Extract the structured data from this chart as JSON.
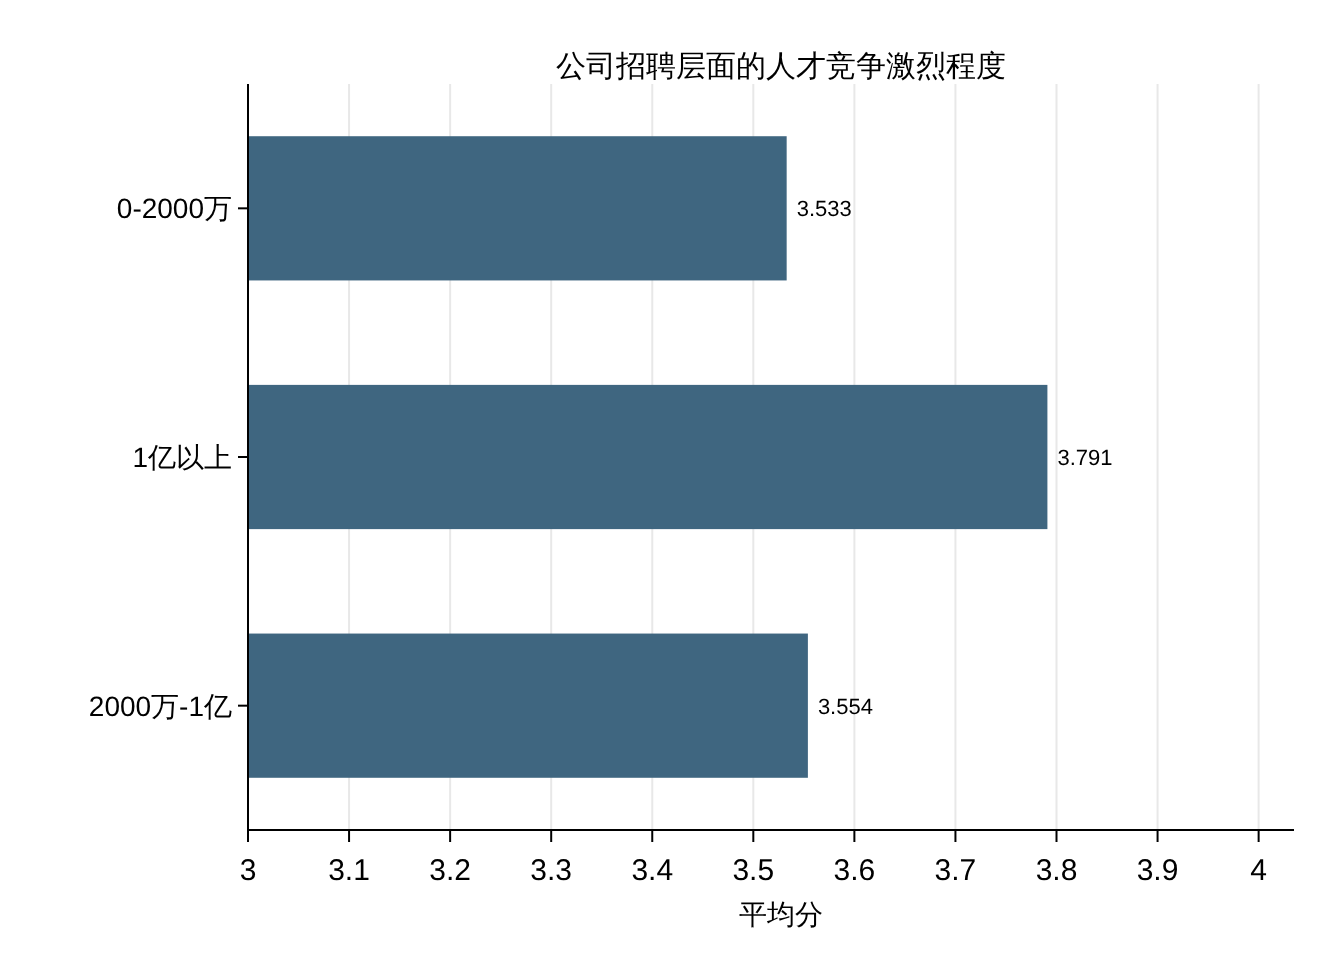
{
  "chart_data": {
    "type": "bar",
    "orientation": "horizontal",
    "title": "公司招聘层面的人才竞争激烈程度",
    "xlabel": "平均分",
    "categories": [
      "0-2000万",
      "1亿以上",
      "2000万-1亿"
    ],
    "values": [
      3.533,
      3.791,
      3.554
    ],
    "color": "#3f6680",
    "xlim": [
      3,
      4.035
    ],
    "xticks": [
      3,
      3.1,
      3.2,
      3.3,
      3.4,
      3.5,
      3.6,
      3.7,
      3.8,
      3.9,
      4
    ],
    "grid": "x",
    "data_labels": true
  }
}
